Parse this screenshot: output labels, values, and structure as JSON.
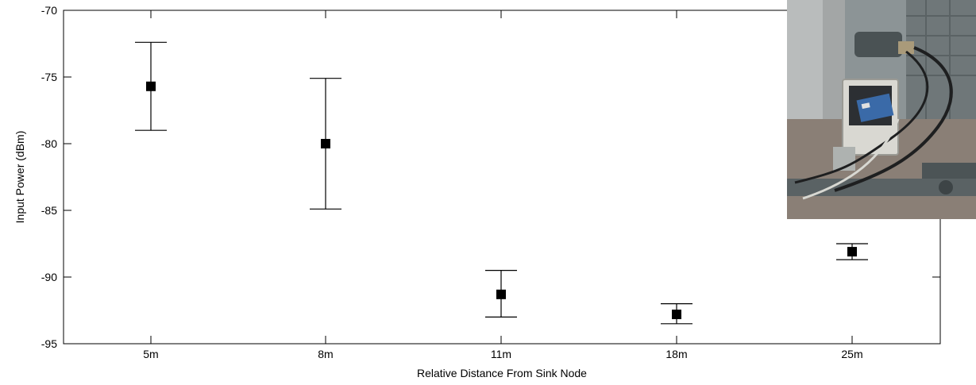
{
  "chart_data": {
    "type": "scatter",
    "title": "",
    "xlabel": "Relative Distance From Sink Node",
    "ylabel": "Input Power (dBm)",
    "categories": [
      "5m",
      "8m",
      "11m",
      "18m",
      "25m"
    ],
    "ylim": [
      -95,
      -70
    ],
    "yticks": [
      -95,
      -90,
      -85,
      -80,
      -75,
      -70
    ],
    "ytick_labels": [
      "-95",
      "-90",
      "-85",
      "-80",
      "-75",
      "-70"
    ],
    "grid": false,
    "series": [
      {
        "marker": "square",
        "color": "#000000",
        "values": [
          -75.7,
          -80.0,
          -91.3,
          -92.8,
          -88.1
        ],
        "lower": [
          -79.0,
          -84.9,
          -93.0,
          -93.5,
          -88.7
        ],
        "upper": [
          -72.4,
          -75.1,
          -89.5,
          -92.0,
          -87.5
        ]
      }
    ]
  },
  "inset_photo": {
    "icon": "sensor-node-photo-icon"
  }
}
